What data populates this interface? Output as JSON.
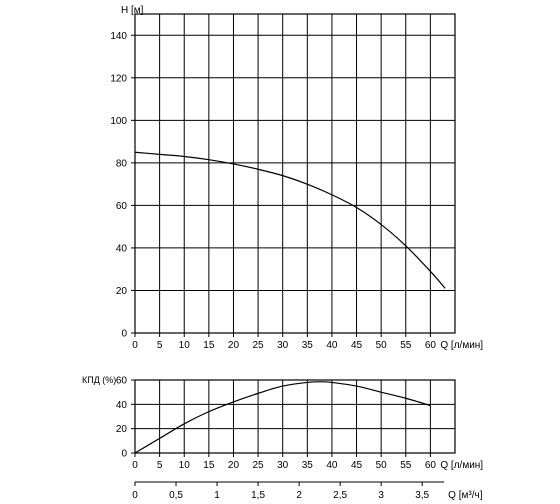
{
  "chart_data": [
    {
      "type": "line",
      "ylabel": "H [м]",
      "xlabel": "Q [л/мин]",
      "x_ticks": [
        "0",
        "5",
        "10",
        "15",
        "20",
        "25",
        "30",
        "35",
        "40",
        "45",
        "50",
        "55",
        "60"
      ],
      "y_ticks": [
        "0",
        "20",
        "40",
        "60",
        "80",
        "100",
        "120",
        "140"
      ],
      "xlim": [
        0,
        65
      ],
      "ylim": [
        0,
        150
      ],
      "grid": true,
      "series": [
        {
          "x": [
            0,
            5,
            10,
            15,
            20,
            25,
            30,
            35,
            40,
            45,
            50,
            55,
            60,
            63
          ],
          "y": [
            85,
            84,
            83,
            81.5,
            79.5,
            77,
            74,
            70,
            65,
            59,
            51,
            41,
            29,
            21
          ]
        }
      ]
    },
    {
      "type": "line",
      "ylabel": "КПД (%)",
      "xlabel": "Q [л/мин]",
      "x_ticks": [
        "0",
        "5",
        "10",
        "15",
        "20",
        "25",
        "30",
        "35",
        "40",
        "45",
        "50",
        "55",
        "60"
      ],
      "y_ticks": [
        "0",
        "20",
        "40",
        "60"
      ],
      "xlim": [
        0,
        65
      ],
      "ylim": [
        0,
        60
      ],
      "grid": true,
      "series": [
        {
          "x": [
            0,
            5,
            10,
            15,
            20,
            25,
            30,
            35,
            38,
            40,
            45,
            50,
            55,
            60
          ],
          "y": [
            0,
            12,
            24,
            34,
            42,
            49,
            55,
            58,
            58.5,
            58,
            55,
            50,
            45,
            39
          ]
        }
      ]
    },
    {
      "type": "axis",
      "xlabel": "Q [м³/ч]",
      "x_ticks": [
        "0",
        "0,5",
        "1",
        "1,5",
        "2",
        "2,5",
        "3",
        "3,5"
      ],
      "x_values": [
        0,
        0.5,
        1,
        1.5,
        2,
        2.5,
        3,
        3.5
      ]
    }
  ]
}
